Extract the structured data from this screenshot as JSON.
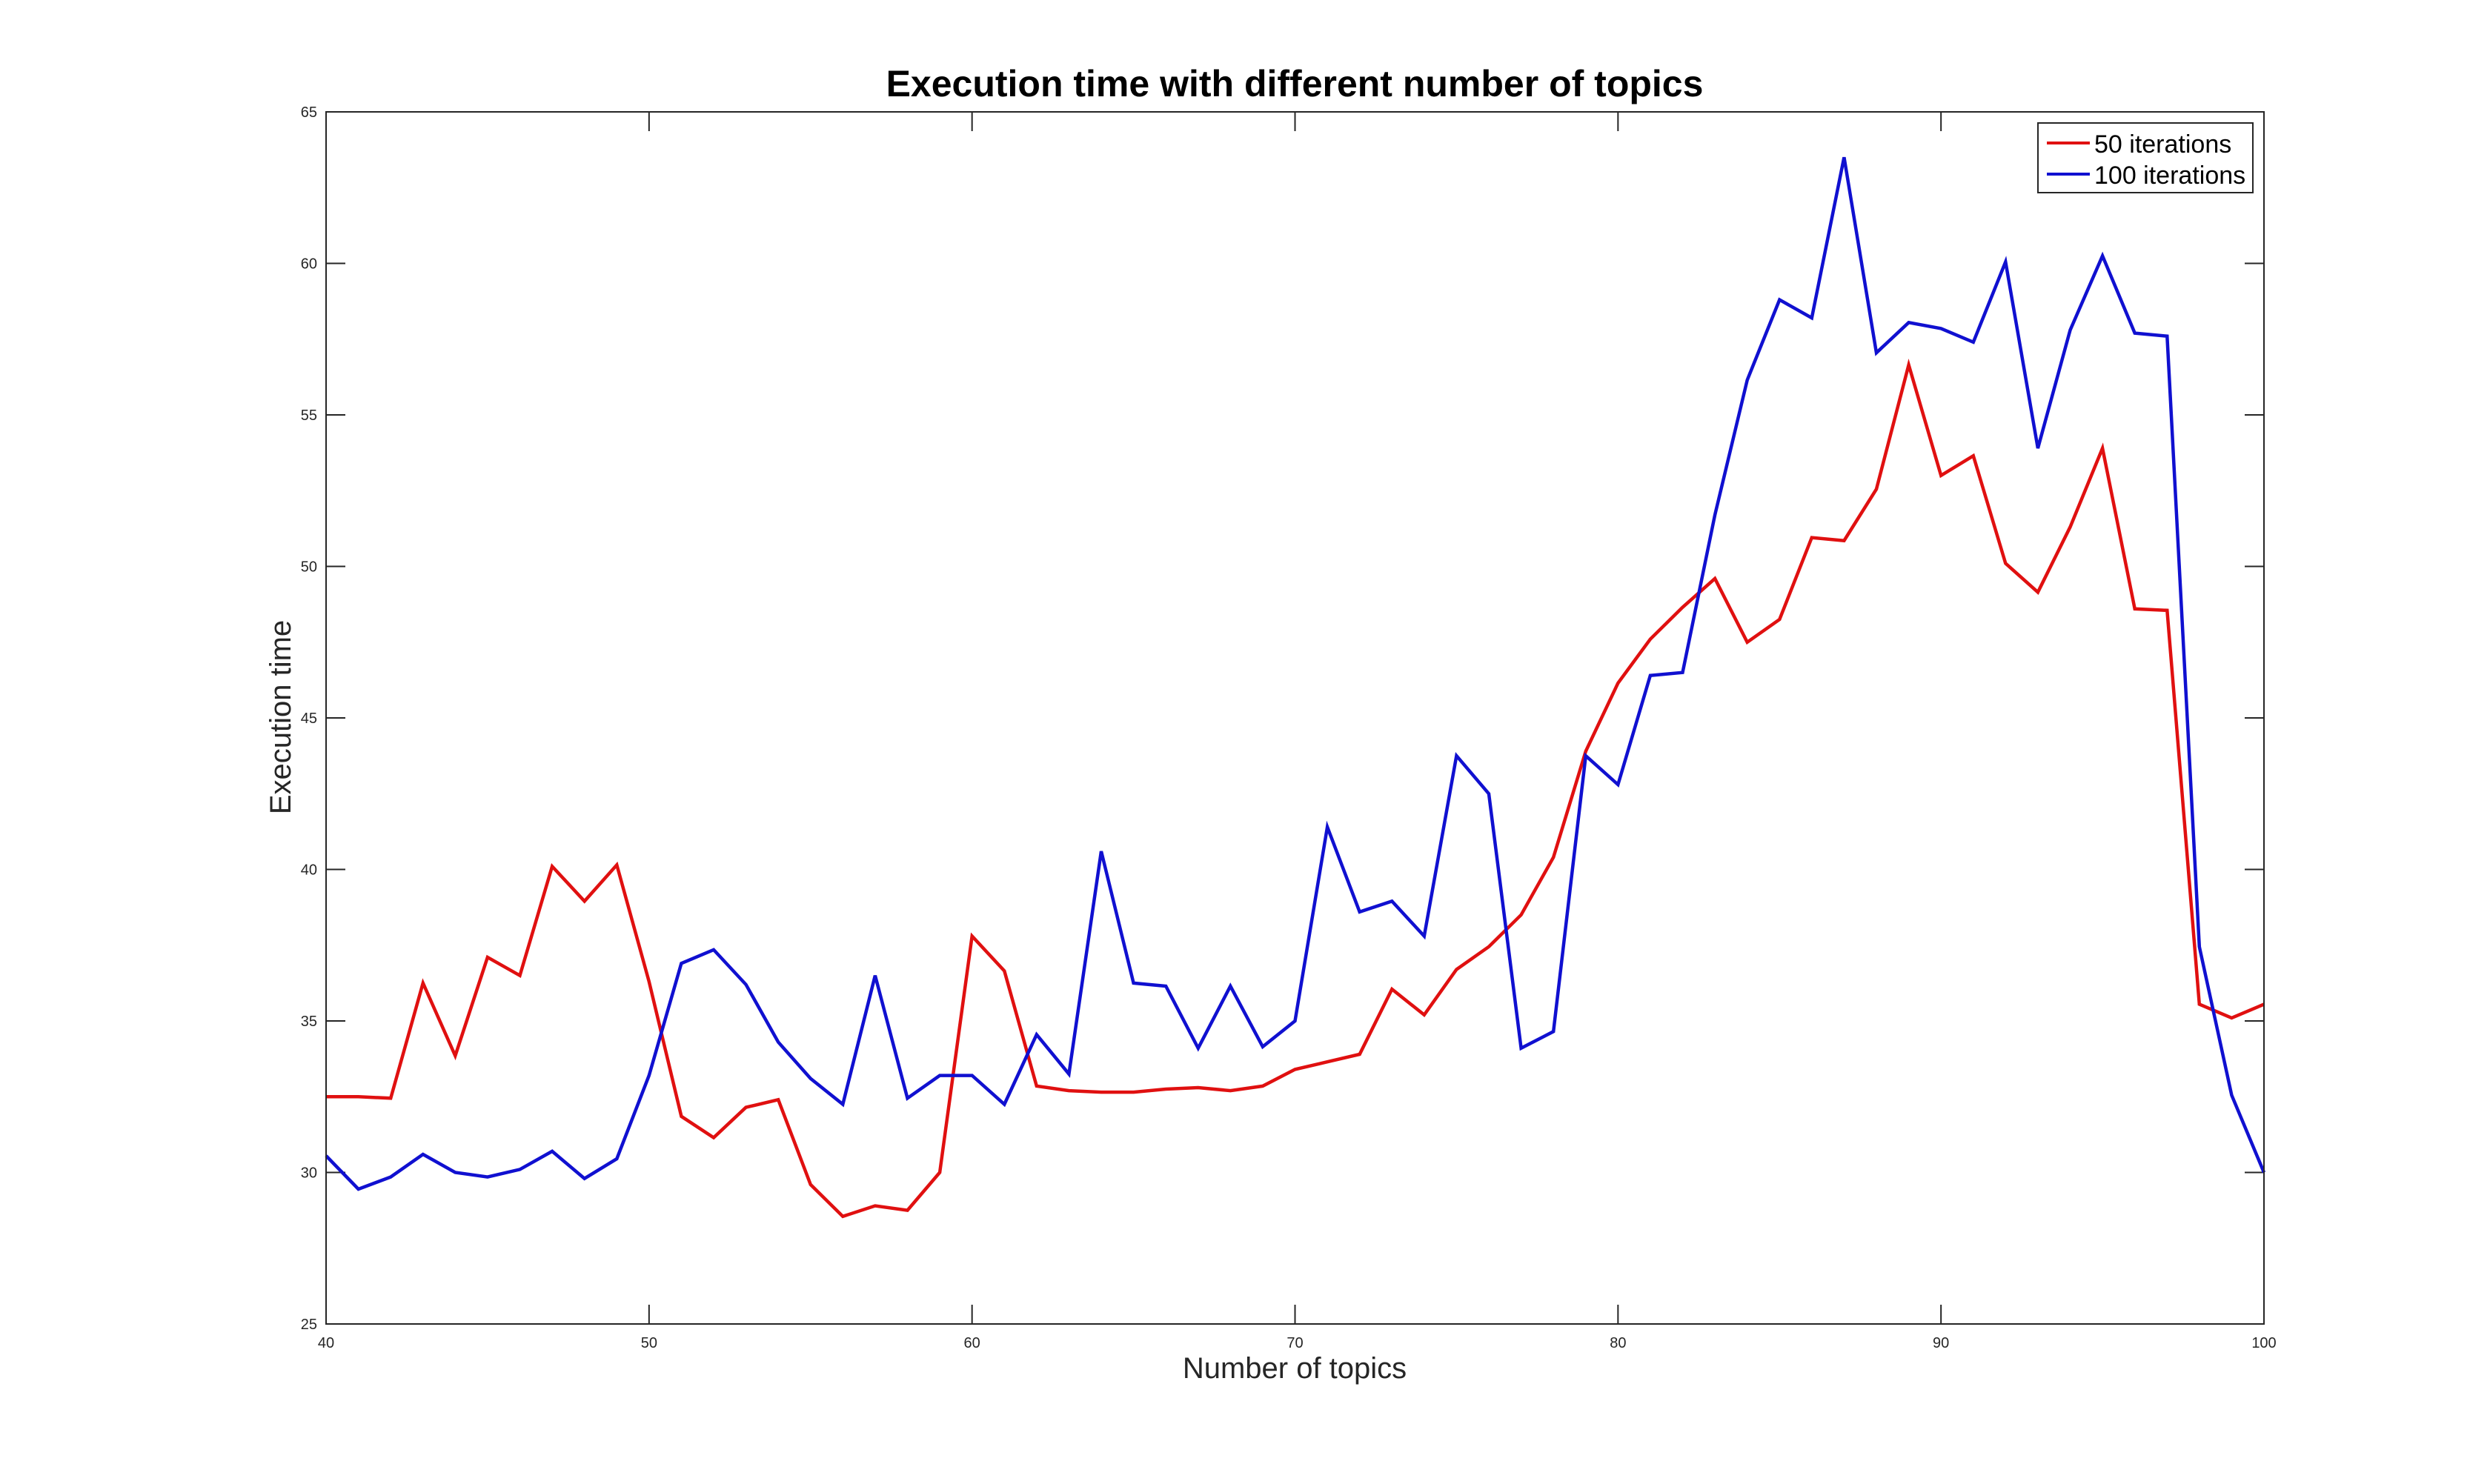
{
  "chart_data": {
    "type": "line",
    "title": "Execution time with different number of topics",
    "xlabel": "Number of topics",
    "ylabel": "Execution time",
    "xlim": [
      40,
      100
    ],
    "ylim": [
      25,
      65
    ],
    "xticks": [
      40,
      50,
      60,
      70,
      80,
      90,
      100
    ],
    "yticks": [
      25,
      30,
      35,
      40,
      45,
      50,
      55,
      60,
      65
    ],
    "grid": false,
    "legend_position": "top-right",
    "x": [
      40,
      41,
      42,
      43,
      44,
      45,
      46,
      47,
      48,
      49,
      50,
      51,
      52,
      53,
      54,
      55,
      56,
      57,
      58,
      59,
      60,
      61,
      62,
      63,
      64,
      65,
      66,
      67,
      68,
      69,
      70,
      71,
      72,
      73,
      74,
      75,
      76,
      77,
      78,
      79,
      80,
      81,
      82,
      83,
      84,
      85,
      86,
      87,
      88,
      89,
      90,
      91,
      92,
      93,
      94,
      95,
      96,
      97,
      98,
      99,
      100
    ],
    "series": [
      {
        "name": "50 iterations",
        "color": "#e01010",
        "values": [
          32.5,
          32.5,
          32.45,
          36.25,
          33.85,
          37.1,
          36.5,
          40.1,
          38.95,
          40.15,
          36.3,
          31.85,
          31.15,
          32.15,
          32.4,
          29.6,
          28.55,
          28.9,
          28.75,
          30.0,
          37.8,
          36.65,
          32.85,
          32.7,
          32.65,
          32.65,
          32.75,
          32.8,
          32.7,
          32.85,
          33.4,
          33.65,
          33.9,
          36.05,
          35.2,
          36.7,
          37.45,
          38.5,
          40.4,
          43.9,
          46.15,
          47.6,
          48.65,
          49.6,
          47.5,
          48.25,
          50.95,
          50.85,
          52.55,
          56.65,
          53.0,
          53.65,
          50.1,
          49.15,
          51.3,
          53.9,
          48.6,
          48.55,
          35.55,
          35.1,
          35.55
        ]
      },
      {
        "name": "100 iterations",
        "color": "#1010d0",
        "values": [
          30.55,
          29.45,
          29.85,
          30.6,
          30.0,
          29.85,
          30.1,
          30.7,
          29.8,
          30.45,
          33.2,
          36.9,
          37.35,
          36.2,
          34.3,
          33.1,
          32.25,
          36.5,
          32.45,
          33.2,
          33.2,
          32.25,
          34.55,
          33.25,
          40.6,
          36.25,
          36.15,
          34.1,
          36.15,
          34.15,
          35.0,
          41.4,
          38.6,
          38.95,
          37.8,
          43.75,
          42.5,
          34.1,
          34.65,
          43.75,
          42.8,
          46.4,
          46.5,
          51.7,
          56.15,
          58.8,
          58.2,
          63.5,
          57.05,
          58.05,
          57.85,
          57.4,
          60.05,
          53.9,
          57.8,
          60.25,
          57.7,
          57.6,
          37.45,
          32.55,
          30.0
        ]
      }
    ]
  }
}
